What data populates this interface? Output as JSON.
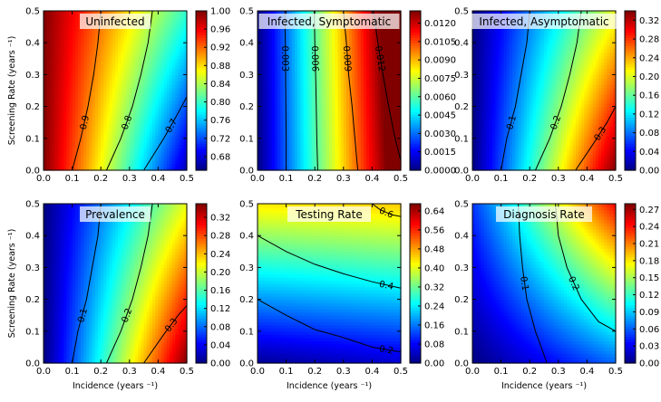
{
  "figure": {
    "colormap": "jet"
  },
  "chart_data": [
    {
      "type": "heatmap",
      "title": "Uninfected",
      "xlabel": "",
      "ylabel": "Screening Rate (years ⁻¹)",
      "xlim": [
        0,
        0.5
      ],
      "ylim": [
        0,
        0.5
      ],
      "x_ticks": [
        "0.0",
        "0.1",
        "0.2",
        "0.3",
        "0.4",
        "0.5"
      ],
      "y_ticks": [
        "0.0",
        "0.1",
        "0.2",
        "0.3",
        "0.4",
        "0.5"
      ],
      "colorbar": {
        "range": [
          0.65,
          1.0
        ],
        "ticks": [
          "0.68",
          "0.72",
          "0.76",
          "0.80",
          "0.84",
          "0.88",
          "0.92",
          "0.96",
          "1.00"
        ]
      },
      "surface": "uninfected",
      "contours": [
        {
          "label": "0.9",
          "points": [
            [
              0.1,
              0.0
            ],
            [
              0.13,
              0.1
            ],
            [
              0.155,
              0.2
            ],
            [
              0.175,
              0.3
            ],
            [
              0.19,
              0.4
            ],
            [
              0.2,
              0.5
            ]
          ],
          "label_at": 1
        },
        {
          "label": "0.8",
          "points": [
            [
              0.22,
              0.0
            ],
            [
              0.27,
              0.1
            ],
            [
              0.31,
              0.2
            ],
            [
              0.34,
              0.3
            ],
            [
              0.365,
              0.4
            ],
            [
              0.38,
              0.5
            ]
          ],
          "label_at": 1
        },
        {
          "label": "0.7",
          "points": [
            [
              0.35,
              0.0
            ],
            [
              0.42,
              0.1
            ],
            [
              0.47,
              0.18
            ],
            [
              0.5,
              0.23
            ]
          ],
          "label_at": 1
        }
      ]
    },
    {
      "type": "heatmap",
      "title": "Infected, Symptomatic",
      "xlabel": "",
      "ylabel": "",
      "xlim": [
        0,
        0.5
      ],
      "ylim": [
        0,
        0.5
      ],
      "x_ticks": [
        "0.0",
        "0.1",
        "0.2",
        "0.3",
        "0.4",
        "0.5"
      ],
      "y_ticks": [
        "0.0",
        "0.1",
        "0.2",
        "0.3",
        "0.4",
        "0.5"
      ],
      "colorbar": {
        "range": [
          0.0,
          0.013
        ],
        "ticks": [
          "0.0000",
          "0.0015",
          "0.0030",
          "0.0045",
          "0.0060",
          "0.0075",
          "0.0090",
          "0.0105",
          "0.0120"
        ]
      },
      "surface": "symptomatic",
      "contours": [
        {
          "label": "0.003",
          "points": [
            [
              0.095,
              0.5
            ],
            [
              0.097,
              0.4
            ],
            [
              0.098,
              0.3
            ],
            [
              0.099,
              0.2
            ],
            [
              0.1,
              0.1
            ],
            [
              0.1,
              0.0
            ]
          ],
          "label_at": 1
        },
        {
          "label": "0.006",
          "points": [
            [
              0.198,
              0.5
            ],
            [
              0.2,
              0.4
            ],
            [
              0.203,
              0.3
            ],
            [
              0.205,
              0.2
            ],
            [
              0.207,
              0.1
            ],
            [
              0.21,
              0.0
            ]
          ],
          "label_at": 1
        },
        {
          "label": "0.009",
          "points": [
            [
              0.3,
              0.5
            ],
            [
              0.31,
              0.4
            ],
            [
              0.318,
              0.3
            ],
            [
              0.33,
              0.2
            ],
            [
              0.34,
              0.1
            ],
            [
              0.35,
              0.0
            ]
          ],
          "label_at": 1
        },
        {
          "label": "0.012",
          "points": [
            [
              0.405,
              0.5
            ],
            [
              0.42,
              0.4
            ],
            [
              0.438,
              0.3
            ],
            [
              0.458,
              0.2
            ],
            [
              0.48,
              0.1
            ],
            [
              0.5,
              0.03
            ]
          ],
          "label_at": 1
        }
      ]
    },
    {
      "type": "heatmap",
      "title": "Infected, Asymptomatic",
      "xlabel": "",
      "ylabel": "",
      "xlim": [
        0,
        0.5
      ],
      "ylim": [
        0,
        0.5
      ],
      "x_ticks": [
        "0.0",
        "0.1",
        "0.2",
        "0.3",
        "0.4",
        "0.5"
      ],
      "y_ticks": [
        "0.0",
        "0.1",
        "0.2",
        "0.3",
        "0.4",
        "0.5"
      ],
      "colorbar": {
        "range": [
          0.0,
          0.34
        ],
        "ticks": [
          "0.00",
          "0.04",
          "0.08",
          "0.12",
          "0.16",
          "0.20",
          "0.24",
          "0.28",
          "0.32"
        ]
      },
      "surface": "asymptomatic",
      "contours": [
        {
          "label": "0.1",
          "points": [
            [
              0.1,
              0.0
            ],
            [
              0.12,
              0.1
            ],
            [
              0.15,
              0.2
            ],
            [
              0.17,
              0.3
            ],
            [
              0.19,
              0.4
            ],
            [
              0.2,
              0.5
            ]
          ],
          "label_at": 1
        },
        {
          "label": "0.2",
          "points": [
            [
              0.22,
              0.0
            ],
            [
              0.27,
              0.1
            ],
            [
              0.31,
              0.2
            ],
            [
              0.34,
              0.3
            ],
            [
              0.365,
              0.4
            ],
            [
              0.38,
              0.5
            ]
          ],
          "label_at": 1
        },
        {
          "label": "0.3",
          "points": [
            [
              0.36,
              0.0
            ],
            [
              0.42,
              0.08
            ],
            [
              0.47,
              0.15
            ],
            [
              0.5,
              0.2
            ]
          ],
          "label_at": 1
        }
      ]
    },
    {
      "type": "heatmap",
      "title": "Prevalence",
      "xlabel": "Incidence  (years ⁻¹)",
      "ylabel": "Screening Rate (years ⁻¹)",
      "xlim": [
        0,
        0.5
      ],
      "ylim": [
        0,
        0.5
      ],
      "x_ticks": [
        "0.0",
        "0.1",
        "0.2",
        "0.3",
        "0.4",
        "0.5"
      ],
      "y_ticks": [
        "0.0",
        "0.1",
        "0.2",
        "0.3",
        "0.4",
        "0.5"
      ],
      "colorbar": {
        "range": [
          0.0,
          0.35
        ],
        "ticks": [
          "0.00",
          "0.04",
          "0.08",
          "0.12",
          "0.16",
          "0.20",
          "0.24",
          "0.28",
          "0.32"
        ]
      },
      "surface": "prevalence",
      "contours": [
        {
          "label": "0.1",
          "points": [
            [
              0.1,
              0.0
            ],
            [
              0.12,
              0.1
            ],
            [
              0.15,
              0.2
            ],
            [
              0.17,
              0.3
            ],
            [
              0.19,
              0.4
            ],
            [
              0.2,
              0.5
            ]
          ],
          "label_at": 1
        },
        {
          "label": "0.2",
          "points": [
            [
              0.22,
              0.0
            ],
            [
              0.27,
              0.1
            ],
            [
              0.31,
              0.2
            ],
            [
              0.34,
              0.3
            ],
            [
              0.365,
              0.4
            ],
            [
              0.38,
              0.5
            ]
          ],
          "label_at": 1
        },
        {
          "label": "0.3",
          "points": [
            [
              0.35,
              0.0
            ],
            [
              0.42,
              0.09
            ],
            [
              0.47,
              0.15
            ],
            [
              0.5,
              0.18
            ]
          ],
          "label_at": 1
        }
      ]
    },
    {
      "type": "heatmap",
      "title": "Testing Rate",
      "xlabel": "Incidence  (years ⁻¹)",
      "ylabel": "",
      "xlim": [
        0,
        0.5
      ],
      "ylim": [
        0,
        0.5
      ],
      "x_ticks": [
        "0.0",
        "0.1",
        "0.2",
        "0.3",
        "0.4",
        "0.5"
      ],
      "y_ticks": [
        "0.0",
        "0.1",
        "0.2",
        "0.3",
        "0.4",
        "0.5"
      ],
      "colorbar": {
        "range": [
          0.0,
          0.67
        ],
        "ticks": [
          "0.00",
          "0.08",
          "0.16",
          "0.24",
          "0.32",
          "0.40",
          "0.48",
          "0.56",
          "0.64"
        ]
      },
      "surface": "testing",
      "contours": [
        {
          "label": "0.2",
          "points": [
            [
              0.0,
              0.2
            ],
            [
              0.1,
              0.15
            ],
            [
              0.2,
              0.105
            ],
            [
              0.3,
              0.08
            ],
            [
              0.4,
              0.05
            ],
            [
              0.5,
              0.035
            ]
          ],
          "label_at": 4
        },
        {
          "label": "0.4",
          "points": [
            [
              0.0,
              0.4
            ],
            [
              0.1,
              0.35
            ],
            [
              0.2,
              0.31
            ],
            [
              0.3,
              0.28
            ],
            [
              0.4,
              0.255
            ],
            [
              0.5,
              0.235
            ]
          ],
          "label_at": 4
        },
        {
          "label": "0.6",
          "points": [
            [
              0.4,
              0.5
            ],
            [
              0.43,
              0.48
            ],
            [
              0.47,
              0.465
            ],
            [
              0.5,
              0.46
            ]
          ],
          "label_at": 1
        }
      ]
    },
    {
      "type": "heatmap",
      "title": "Diagnosis Rate",
      "xlabel": "Incidence  (years ⁻¹)",
      "ylabel": "",
      "xlim": [
        0,
        0.5
      ],
      "ylim": [
        0,
        0.5
      ],
      "x_ticks": [
        "0.0",
        "0.1",
        "0.2",
        "0.3",
        "0.4",
        "0.5"
      ],
      "y_ticks": [
        "0.0",
        "0.1",
        "0.2",
        "0.3",
        "0.4",
        "0.5"
      ],
      "colorbar": {
        "range": [
          0.0,
          0.28
        ],
        "ticks": [
          "0.00",
          "0.03",
          "0.06",
          "0.09",
          "0.12",
          "0.15",
          "0.18",
          "0.21",
          "0.24",
          "0.27"
        ]
      },
      "surface": "diagnosis",
      "contours": [
        {
          "label": "0.1",
          "points": [
            [
              0.16,
              0.5
            ],
            [
              0.165,
              0.4
            ],
            [
              0.175,
              0.3
            ],
            [
              0.19,
              0.2
            ],
            [
              0.22,
              0.1
            ],
            [
              0.26,
              0.0
            ]
          ],
          "label_at": 2
        },
        {
          "label": "0.2",
          "points": [
            [
              0.29,
              0.5
            ],
            [
              0.3,
              0.4
            ],
            [
              0.33,
              0.3
            ],
            [
              0.38,
              0.2
            ],
            [
              0.44,
              0.13
            ],
            [
              0.5,
              0.1
            ]
          ],
          "label_at": 2
        }
      ]
    }
  ]
}
